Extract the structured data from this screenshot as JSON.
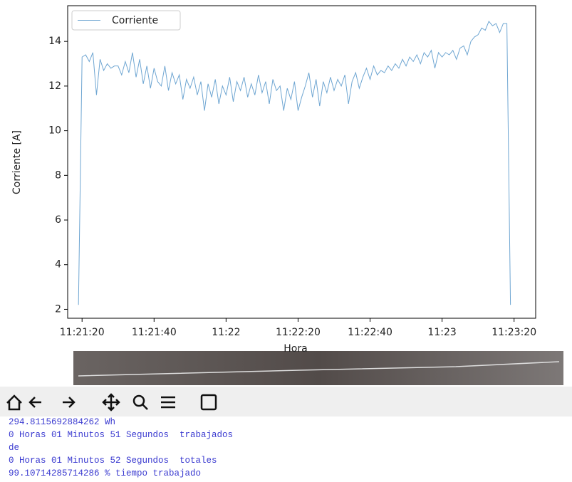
{
  "chart_data": {
    "type": "line",
    "xlabel": "Hora",
    "ylabel": "Corriente [A]",
    "x": [
      "11:21:19",
      "11:21:20",
      "11:21:21",
      "11:21:22",
      "11:21:23",
      "11:21:24",
      "11:21:25",
      "11:21:26",
      "11:21:27",
      "11:21:28",
      "11:21:29",
      "11:21:30",
      "11:21:31",
      "11:21:32",
      "11:21:33",
      "11:21:34",
      "11:21:35",
      "11:21:36",
      "11:21:37",
      "11:21:38",
      "11:21:39",
      "11:21:40",
      "11:21:41",
      "11:21:42",
      "11:21:43",
      "11:21:44",
      "11:21:45",
      "11:21:46",
      "11:21:47",
      "11:21:48",
      "11:21:49",
      "11:21:50",
      "11:21:51",
      "11:21:52",
      "11:21:53",
      "11:21:54",
      "11:21:55",
      "11:21:56",
      "11:21:57",
      "11:21:58",
      "11:21:59",
      "11:22:00",
      "11:22:01",
      "11:22:02",
      "11:22:03",
      "11:22:04",
      "11:22:05",
      "11:22:06",
      "11:22:07",
      "11:22:08",
      "11:22:09",
      "11:22:10",
      "11:22:11",
      "11:22:12",
      "11:22:13",
      "11:22:14",
      "11:22:15",
      "11:22:16",
      "11:22:17",
      "11:22:18",
      "11:22:19",
      "11:22:20",
      "11:22:21",
      "11:22:22",
      "11:22:23",
      "11:22:24",
      "11:22:25",
      "11:22:26",
      "11:22:27",
      "11:22:28",
      "11:22:29",
      "11:22:30",
      "11:22:31",
      "11:22:32",
      "11:22:33",
      "11:22:34",
      "11:22:35",
      "11:22:36",
      "11:22:37",
      "11:22:38",
      "11:22:39",
      "11:22:40",
      "11:22:41",
      "11:22:42",
      "11:22:43",
      "11:22:44",
      "11:22:45",
      "11:22:46",
      "11:22:47",
      "11:22:48",
      "11:22:49",
      "11:22:50",
      "11:22:51",
      "11:22:52",
      "11:22:53",
      "11:22:54",
      "11:22:55",
      "11:22:56",
      "11:22:57",
      "11:22:58",
      "11:22:59",
      "11:23:00",
      "11:23:01",
      "11:23:02",
      "11:23:03",
      "11:23:04",
      "11:23:05",
      "11:23:06",
      "11:23:07",
      "11:23:08",
      "11:23:09",
      "11:23:10",
      "11:23:11",
      "11:23:12",
      "11:23:13",
      "11:23:14",
      "11:23:15",
      "11:23:16",
      "11:23:17",
      "11:23:18",
      "11:23:19"
    ],
    "series": [
      {
        "name": "Corriente",
        "color": "#6fa6d2",
        "values": [
          2.2,
          13.3,
          13.4,
          13.1,
          13.5,
          11.6,
          13.2,
          12.7,
          13.0,
          12.8,
          12.9,
          12.9,
          12.5,
          13.1,
          12.6,
          13.5,
          12.4,
          13.2,
          12.1,
          12.9,
          11.9,
          12.8,
          12.2,
          12.0,
          12.9,
          11.8,
          12.6,
          12.1,
          12.5,
          11.4,
          12.3,
          11.9,
          12.4,
          11.6,
          12.2,
          10.9,
          12.1,
          11.5,
          12.3,
          11.2,
          12.0,
          11.6,
          12.4,
          11.3,
          12.2,
          11.8,
          12.4,
          11.5,
          12.1,
          11.6,
          12.5,
          11.7,
          12.2,
          11.2,
          12.3,
          11.8,
          12.0,
          10.9,
          11.9,
          11.4,
          12.2,
          10.9,
          11.5,
          12.0,
          12.6,
          11.5,
          12.3,
          11.1,
          12.2,
          11.7,
          12.4,
          11.8,
          12.3,
          12.0,
          12.5,
          11.2,
          12.2,
          12.6,
          11.9,
          12.4,
          12.8,
          12.3,
          12.9,
          12.5,
          12.7,
          12.6,
          12.9,
          12.7,
          13.0,
          12.8,
          13.2,
          12.9,
          13.3,
          13.1,
          13.4,
          13.0,
          13.5,
          13.3,
          13.6,
          12.8,
          13.5,
          13.3,
          13.5,
          13.4,
          13.6,
          13.2,
          13.7,
          13.8,
          13.4,
          14.0,
          14.2,
          14.3,
          14.6,
          14.5,
          14.9,
          14.7,
          14.8,
          14.4,
          14.8,
          14.8,
          2.2
        ]
      }
    ],
    "xlim": [
      "11:21:16",
      "11:23:26"
    ],
    "xticks": [
      "11:21:20",
      "11:21:40",
      {
        "value": "11:22:00",
        "label": "11:22"
      },
      "11:22:20",
      "11:22:40",
      {
        "value": "11:23:00",
        "label": "11:23"
      },
      "11:23:20"
    ],
    "ylim": [
      1.6,
      15.6
    ],
    "yticks": [
      2,
      4,
      6,
      8,
      10,
      12,
      14
    ],
    "legend": "upper left",
    "grid": false
  },
  "console": {
    "lines": [
      "294.8115692884262 Wh",
      "0 Horas 01 Minutos 51 Segundos  trabajados",
      "de",
      "0 Horas 01 Minutos 52 Segundos  totales",
      "99.10714285714286 % tiempo trabajado"
    ]
  }
}
